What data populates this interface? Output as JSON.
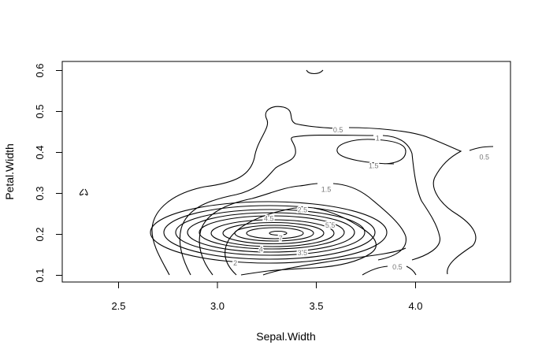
{
  "chart_data": {
    "type": "contour",
    "xlabel": "Sepal.Width",
    "ylabel": "Petal.Width",
    "xlim": [
      2.2,
      4.47
    ],
    "ylim": [
      0.08,
      0.62
    ],
    "x_ticks": [
      "2.5",
      "3.0",
      "3.5",
      "4.0"
    ],
    "y_ticks": [
      "0.1",
      "0.2",
      "0.3",
      "0.4",
      "0.5",
      "0.6"
    ],
    "grid": false,
    "density_peaks": [
      {
        "x": 3.3,
        "y": 0.2,
        "level": 7
      },
      {
        "x": 3.8,
        "y": 0.4,
        "level": 1.5
      }
    ],
    "contour_labels": [
      {
        "text": "0.5",
        "x": 3.61,
        "y": 0.455
      },
      {
        "text": "1",
        "x": 3.81,
        "y": 0.435
      },
      {
        "text": "1.5",
        "x": 3.79,
        "y": 0.367
      },
      {
        "text": "0.5",
        "x": 4.35,
        "y": 0.388
      },
      {
        "text": "1.5",
        "x": 3.55,
        "y": 0.31
      },
      {
        "text": "2.5",
        "x": 3.43,
        "y": 0.26
      },
      {
        "text": "4.5",
        "x": 3.26,
        "y": 0.238
      },
      {
        "text": "5.5",
        "x": 3.57,
        "y": 0.222
      },
      {
        "text": "7",
        "x": 3.32,
        "y": 0.19
      },
      {
        "text": "4",
        "x": 3.22,
        "y": 0.163
      },
      {
        "text": "3.5",
        "x": 3.43,
        "y": 0.155
      },
      {
        "text": "2",
        "x": 3.09,
        "y": 0.13
      },
      {
        "text": "0.5",
        "x": 3.91,
        "y": 0.12
      }
    ]
  }
}
